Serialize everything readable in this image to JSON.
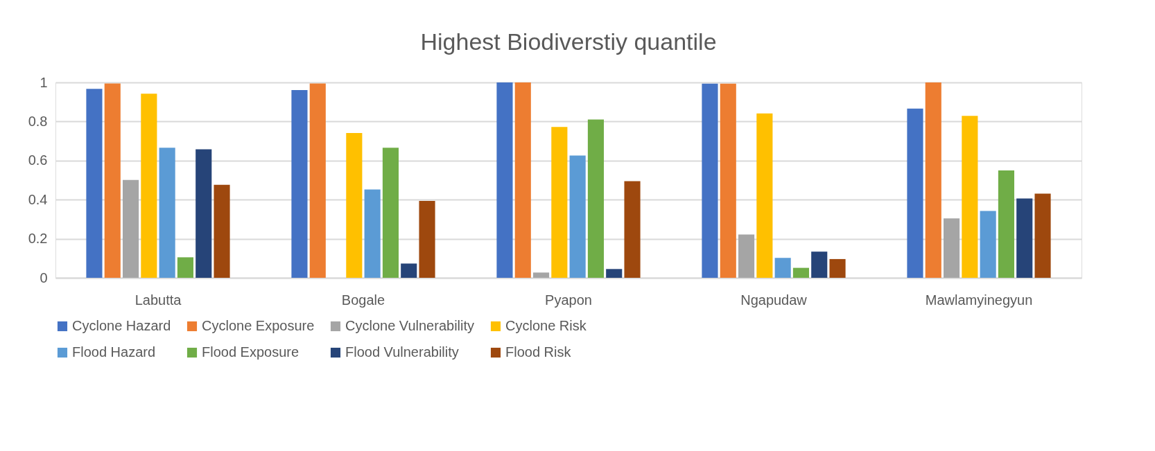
{
  "chart_data": {
    "type": "bar",
    "title": "Highest Biodiverstiy quantile",
    "categories": [
      "Labutta",
      "Bogale",
      "Pyapon",
      "Ngapudaw",
      "Mawlamyinegyun"
    ],
    "series": [
      {
        "name": "Cyclone Hazard",
        "color": "#4472c4",
        "values": [
          0.967,
          0.961,
          1.0,
          0.994,
          0.866
        ]
      },
      {
        "name": "Cyclone Exposure",
        "color": "#ed7d31",
        "values": [
          0.995,
          0.995,
          1.0,
          0.994,
          1.0
        ]
      },
      {
        "name": "Cyclone Vulnerability",
        "color": "#a5a5a5",
        "values": [
          0.501,
          0,
          0.027,
          0.222,
          0.304
        ]
      },
      {
        "name": "Cyclone Risk",
        "color": "#ffc000",
        "values": [
          0.942,
          0.741,
          0.772,
          0.841,
          0.829
        ]
      },
      {
        "name": "Flood Hazard",
        "color": "#5b9bd5",
        "values": [
          0.666,
          0.452,
          0.626,
          0.102,
          0.342
        ]
      },
      {
        "name": "Flood Exposure",
        "color": "#70ad47",
        "values": [
          0.105,
          0.666,
          0.81,
          0.051,
          0.55
        ]
      },
      {
        "name": "Flood Vulnerability",
        "color": "#264478",
        "values": [
          0.658,
          0.073,
          0.045,
          0.134,
          0.406
        ]
      },
      {
        "name": "Flood Risk",
        "color": "#9e480e",
        "values": [
          0.476,
          0.394,
          0.495,
          0.096,
          0.431
        ]
      }
    ],
    "ylim": [
      0,
      1
    ],
    "yticks": [
      0,
      0.2,
      0.4,
      0.6,
      0.8,
      1
    ],
    "grid": "y",
    "legend": "bottom"
  }
}
